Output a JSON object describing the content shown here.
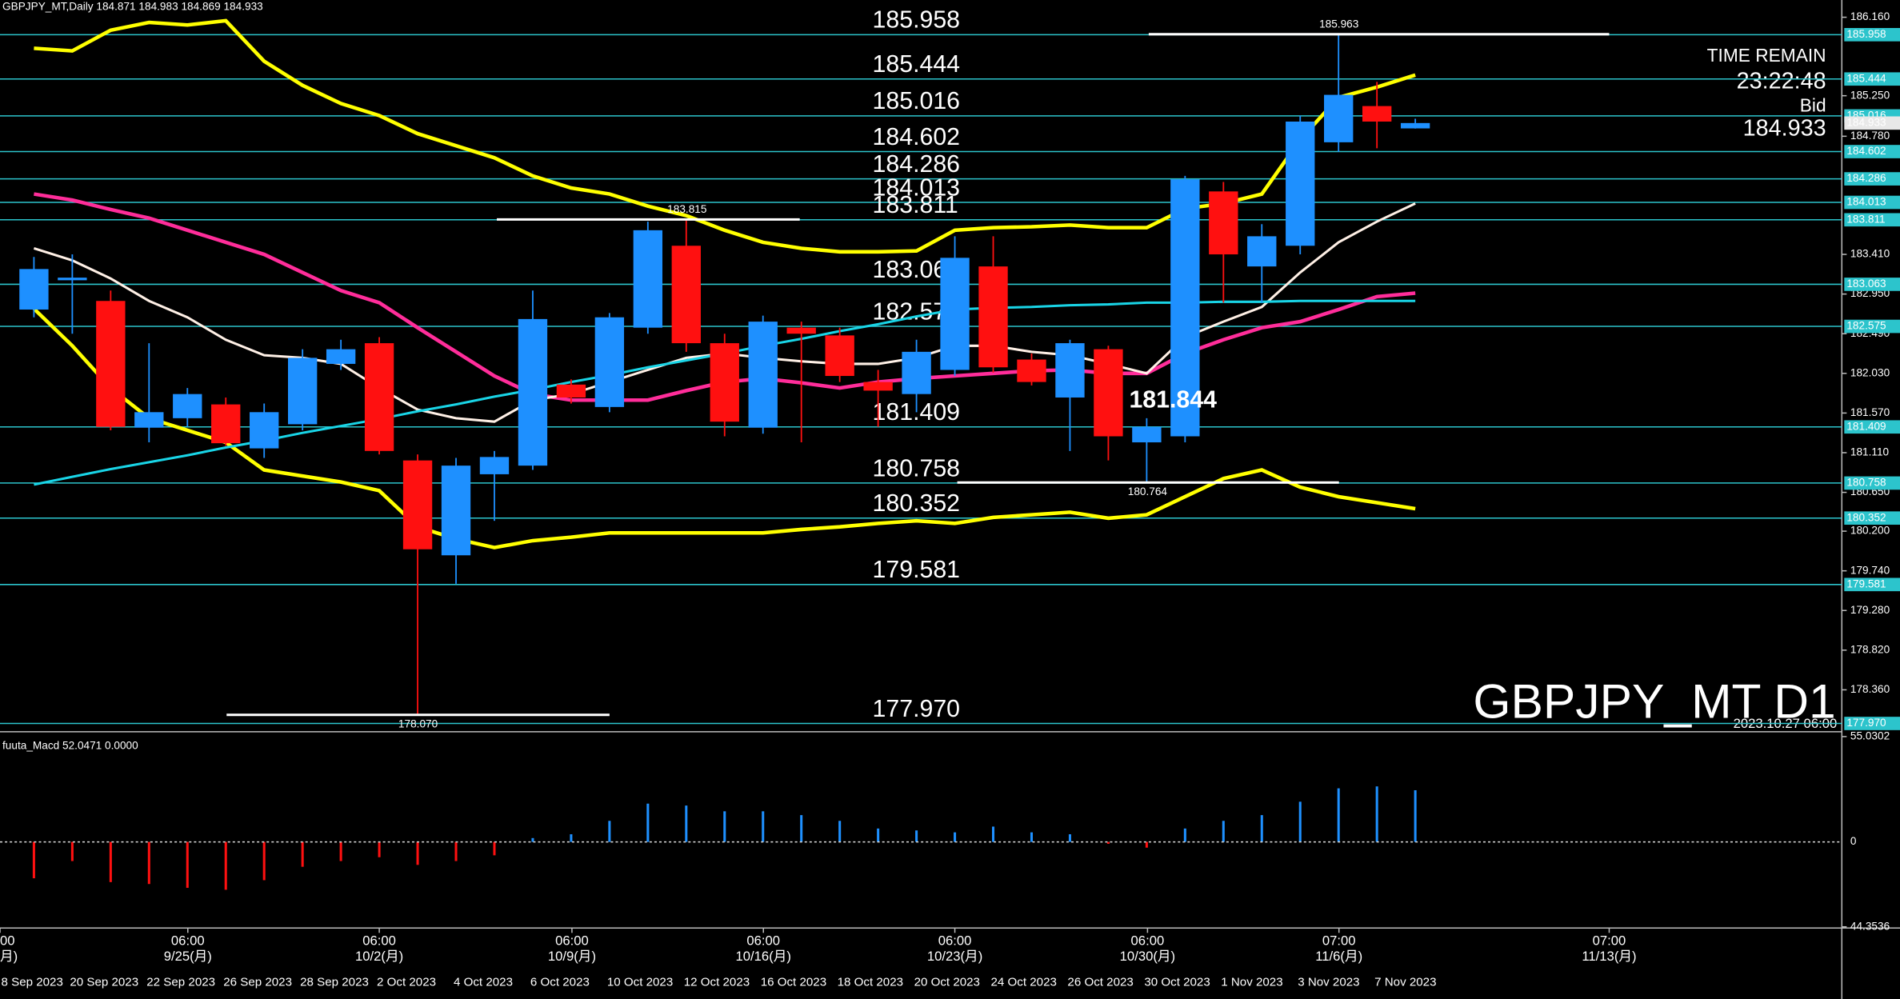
{
  "header": "GBPJPY_MT,Daily  184.871 184.983 184.869 184.933",
  "info": {
    "time_remain_label": "TIME REMAIN",
    "time_remain": "23:22:48",
    "bid_label": "Bid",
    "bid": 184.933
  },
  "symbol_watermark": "GBPJPY_MT D1",
  "watermark_date": "2023.10.27 06:00",
  "edge_date_label": "8 Sep 2023",
  "time_axis": [
    {
      "time": "00",
      "date": "月)"
    },
    {
      "time": "06:00",
      "date": "9/25(月)"
    },
    {
      "time": "06:00",
      "date": "10/2(月)"
    },
    {
      "time": "06:00",
      "date": "10/9(月)"
    },
    {
      "time": "06:00",
      "date": "10/16(月)"
    },
    {
      "time": "06:00",
      "date": "10/23(月)"
    },
    {
      "time": "06:00",
      "date": "10/30(月)"
    },
    {
      "time": "07:00",
      "date": "11/6(月)"
    },
    {
      "time": "07:00",
      "date": "11/13(月)"
    }
  ],
  "chart_data": [
    {
      "type": "candlestick",
      "categories": [
        null,
        "20 Sep 2023",
        null,
        "22 Sep 2023",
        null,
        "26 Sep 2023",
        null,
        "28 Sep 2023",
        null,
        "2 Oct 2023",
        null,
        "4 Oct 2023",
        null,
        "6 Oct 2023",
        null,
        "10 Oct 2023",
        null,
        "12 Oct 2023",
        null,
        "16 Oct 2023",
        null,
        "18 Oct 2023",
        null,
        "20 Oct 2023",
        null,
        "24 Oct 2023",
        null,
        "26 Oct 2023",
        null,
        "30 Oct 2023",
        null,
        "1 Nov 2023",
        null,
        "3 Nov 2023",
        null,
        "7 Nov 2023",
        null
      ],
      "open": [
        182.77,
        183.11,
        182.87,
        181.4,
        181.51,
        181.67,
        181.16,
        181.44,
        182.14,
        182.38,
        181.02,
        179.92,
        180.86,
        180.96,
        181.9,
        181.64,
        182.56,
        183.51,
        182.38,
        181.4,
        182.56,
        182.47,
        181.93,
        181.79,
        182.07,
        183.27,
        182.19,
        181.75,
        182.31,
        181.23,
        181.3,
        184.14,
        183.27,
        183.51,
        184.71,
        185.13,
        184.871
      ],
      "high": [
        183.38,
        183.41,
        182.99,
        182.38,
        181.86,
        181.75,
        181.68,
        182.31,
        182.42,
        182.45,
        181.09,
        181.05,
        181.13,
        182.99,
        181.96,
        182.73,
        183.79,
        183.815,
        182.49,
        182.7,
        182.63,
        182.56,
        182.07,
        182.42,
        183.62,
        183.62,
        182.26,
        182.42,
        182.35,
        181.51,
        184.32,
        184.25,
        183.76,
        185.02,
        185.963,
        185.41,
        184.983
      ],
      "low": [
        182.68,
        182.49,
        181.37,
        181.23,
        181.41,
        181.19,
        181.05,
        181.37,
        182.07,
        181.09,
        178.07,
        179.59,
        180.32,
        180.91,
        181.68,
        181.58,
        182.49,
        182.28,
        181.3,
        181.33,
        181.23,
        181.93,
        181.41,
        181.58,
        182.0,
        182.04,
        181.89,
        181.13,
        181.02,
        180.764,
        181.23,
        182.85,
        182.85,
        183.41,
        184.6,
        184.64,
        184.869
      ],
      "close": [
        183.24,
        183.14,
        181.41,
        181.58,
        181.79,
        181.22,
        181.58,
        182.21,
        182.31,
        181.13,
        179.99,
        180.96,
        181.06,
        182.66,
        181.75,
        182.68,
        183.69,
        182.38,
        181.47,
        182.63,
        182.49,
        182.0,
        181.83,
        182.28,
        183.37,
        182.1,
        181.93,
        182.38,
        181.3,
        181.41,
        184.28,
        183.41,
        183.62,
        184.95,
        185.26,
        184.95,
        184.933
      ],
      "up_color": "#1e90ff",
      "down_color": "#ff1010",
      "lines": [
        {
          "color": "#ffff00",
          "width": 3,
          "values": [
            185.8,
            185.77,
            186.01,
            186.1,
            186.07,
            186.12,
            185.65,
            185.37,
            185.16,
            185.02,
            184.81,
            184.67,
            184.53,
            184.32,
            184.18,
            184.11,
            183.97,
            183.86,
            183.69,
            183.55,
            183.48,
            183.44,
            183.44,
            183.45,
            183.69,
            183.72,
            183.73,
            183.75,
            183.72,
            183.72,
            183.94,
            184.0,
            184.11,
            184.74,
            185.23,
            185.35,
            185.49
          ]
        },
        {
          "color": "#ffff00",
          "width": 3,
          "values": [
            182.78,
            182.35,
            181.86,
            181.51,
            181.37,
            181.23,
            180.91,
            180.84,
            180.77,
            180.67,
            180.25,
            180.11,
            180.01,
            180.09,
            180.13,
            180.18,
            180.18,
            180.18,
            180.18,
            180.18,
            180.22,
            180.25,
            180.29,
            180.32,
            180.29,
            180.36,
            180.39,
            180.42,
            180.35,
            180.39,
            180.6,
            180.81,
            180.91,
            180.71,
            180.6,
            180.53,
            180.46
          ]
        },
        {
          "color": "#ff2d9a",
          "width": 3,
          "values": [
            184.11,
            184.04,
            183.93,
            183.83,
            183.69,
            183.55,
            183.41,
            183.2,
            182.99,
            182.85,
            182.56,
            182.28,
            182.0,
            181.79,
            181.72,
            181.72,
            181.72,
            181.83,
            181.93,
            181.97,
            181.92,
            181.86,
            181.93,
            181.97,
            182.0,
            182.03,
            182.06,
            182.07,
            182.03,
            182.03,
            182.26,
            182.42,
            182.56,
            182.63,
            182.77,
            182.92,
            182.96
          ]
        },
        {
          "color": "#fff0e6",
          "width": 2,
          "values": [
            183.48,
            183.34,
            183.13,
            182.87,
            182.68,
            182.42,
            182.24,
            182.21,
            182.14,
            181.86,
            181.61,
            181.51,
            181.47,
            181.72,
            181.79,
            181.93,
            182.07,
            182.21,
            182.26,
            182.21,
            182.17,
            182.14,
            182.14,
            182.21,
            182.35,
            182.35,
            182.28,
            182.24,
            182.14,
            182.03,
            182.45,
            182.63,
            182.8,
            183.2,
            183.55,
            183.79,
            184.0
          ]
        },
        {
          "color": "#19d4e6",
          "width": 2,
          "values": [
            180.74,
            180.83,
            180.92,
            181.0,
            181.08,
            181.17,
            181.25,
            181.34,
            181.42,
            181.5,
            181.59,
            181.67,
            181.76,
            181.84,
            181.93,
            182.01,
            182.1,
            182.18,
            182.26,
            182.35,
            182.43,
            182.52,
            182.6,
            182.69,
            182.77,
            182.79,
            182.8,
            182.82,
            182.83,
            182.85,
            182.85,
            182.86,
            182.86,
            182.87,
            182.87,
            182.87,
            182.87
          ]
        }
      ],
      "levels": [
        185.958,
        185.444,
        185.016,
        184.602,
        184.286,
        184.013,
        183.811,
        183.063,
        182.575,
        181.409,
        180.758,
        180.352,
        179.581,
        {
          "value": 177.97,
          "label": "177.970"
        }
      ],
      "level_color": "#2cc4cc",
      "price_marks": [
        185.963,
        183.815,
        {
          "value": 178.07,
          "label": "178.070"
        },
        180.764
      ],
      "cursor_price": 181.844,
      "ylim": [
        177.93,
        186.36
      ],
      "yticks": [
        {
          "value": 186.16,
          "label": "186.160"
        },
        {
          "value": 185.25,
          "label": "185.250"
        },
        {
          "value": 184.78,
          "label": "184.780"
        },
        {
          "value": 183.41,
          "label": "183.410"
        },
        {
          "value": 182.95,
          "label": "182.950"
        },
        {
          "value": 182.49,
          "label": "182.490"
        },
        {
          "value": 182.03,
          "label": "182.030"
        },
        {
          "value": 181.57,
          "label": "181.570"
        },
        {
          "value": 181.11,
          "label": "181.110"
        },
        {
          "value": 180.65,
          "label": "180.650"
        },
        {
          "value": 180.2,
          "label": "180.200"
        },
        {
          "value": 179.74,
          "label": "179.740"
        },
        {
          "value": 179.28,
          "label": "179.280"
        },
        {
          "value": 178.82,
          "label": "178.820"
        },
        {
          "value": 178.36,
          "label": "178.360"
        }
      ]
    },
    {
      "type": "bar",
      "title": "fuuta_Macd 52.0471 0.0000",
      "values": [
        -19,
        -10,
        -21,
        -22,
        -24,
        -25,
        -20,
        -13,
        -10,
        -8,
        -12,
        -10,
        -7,
        2,
        4,
        11,
        20,
        19,
        16,
        16,
        14,
        11,
        7,
        6,
        5,
        8,
        5,
        4,
        -1,
        -3,
        7,
        11,
        14,
        21,
        28,
        29,
        27
      ],
      "up_color": "#1e90ff",
      "down_color": "#ff1010",
      "ylim": [
        -44.3536,
        55.0302
      ],
      "yticks": [
        55.0302,
        0,
        {
          "value": -44.3536,
          "label": "44.3536"
        }
      ]
    }
  ]
}
